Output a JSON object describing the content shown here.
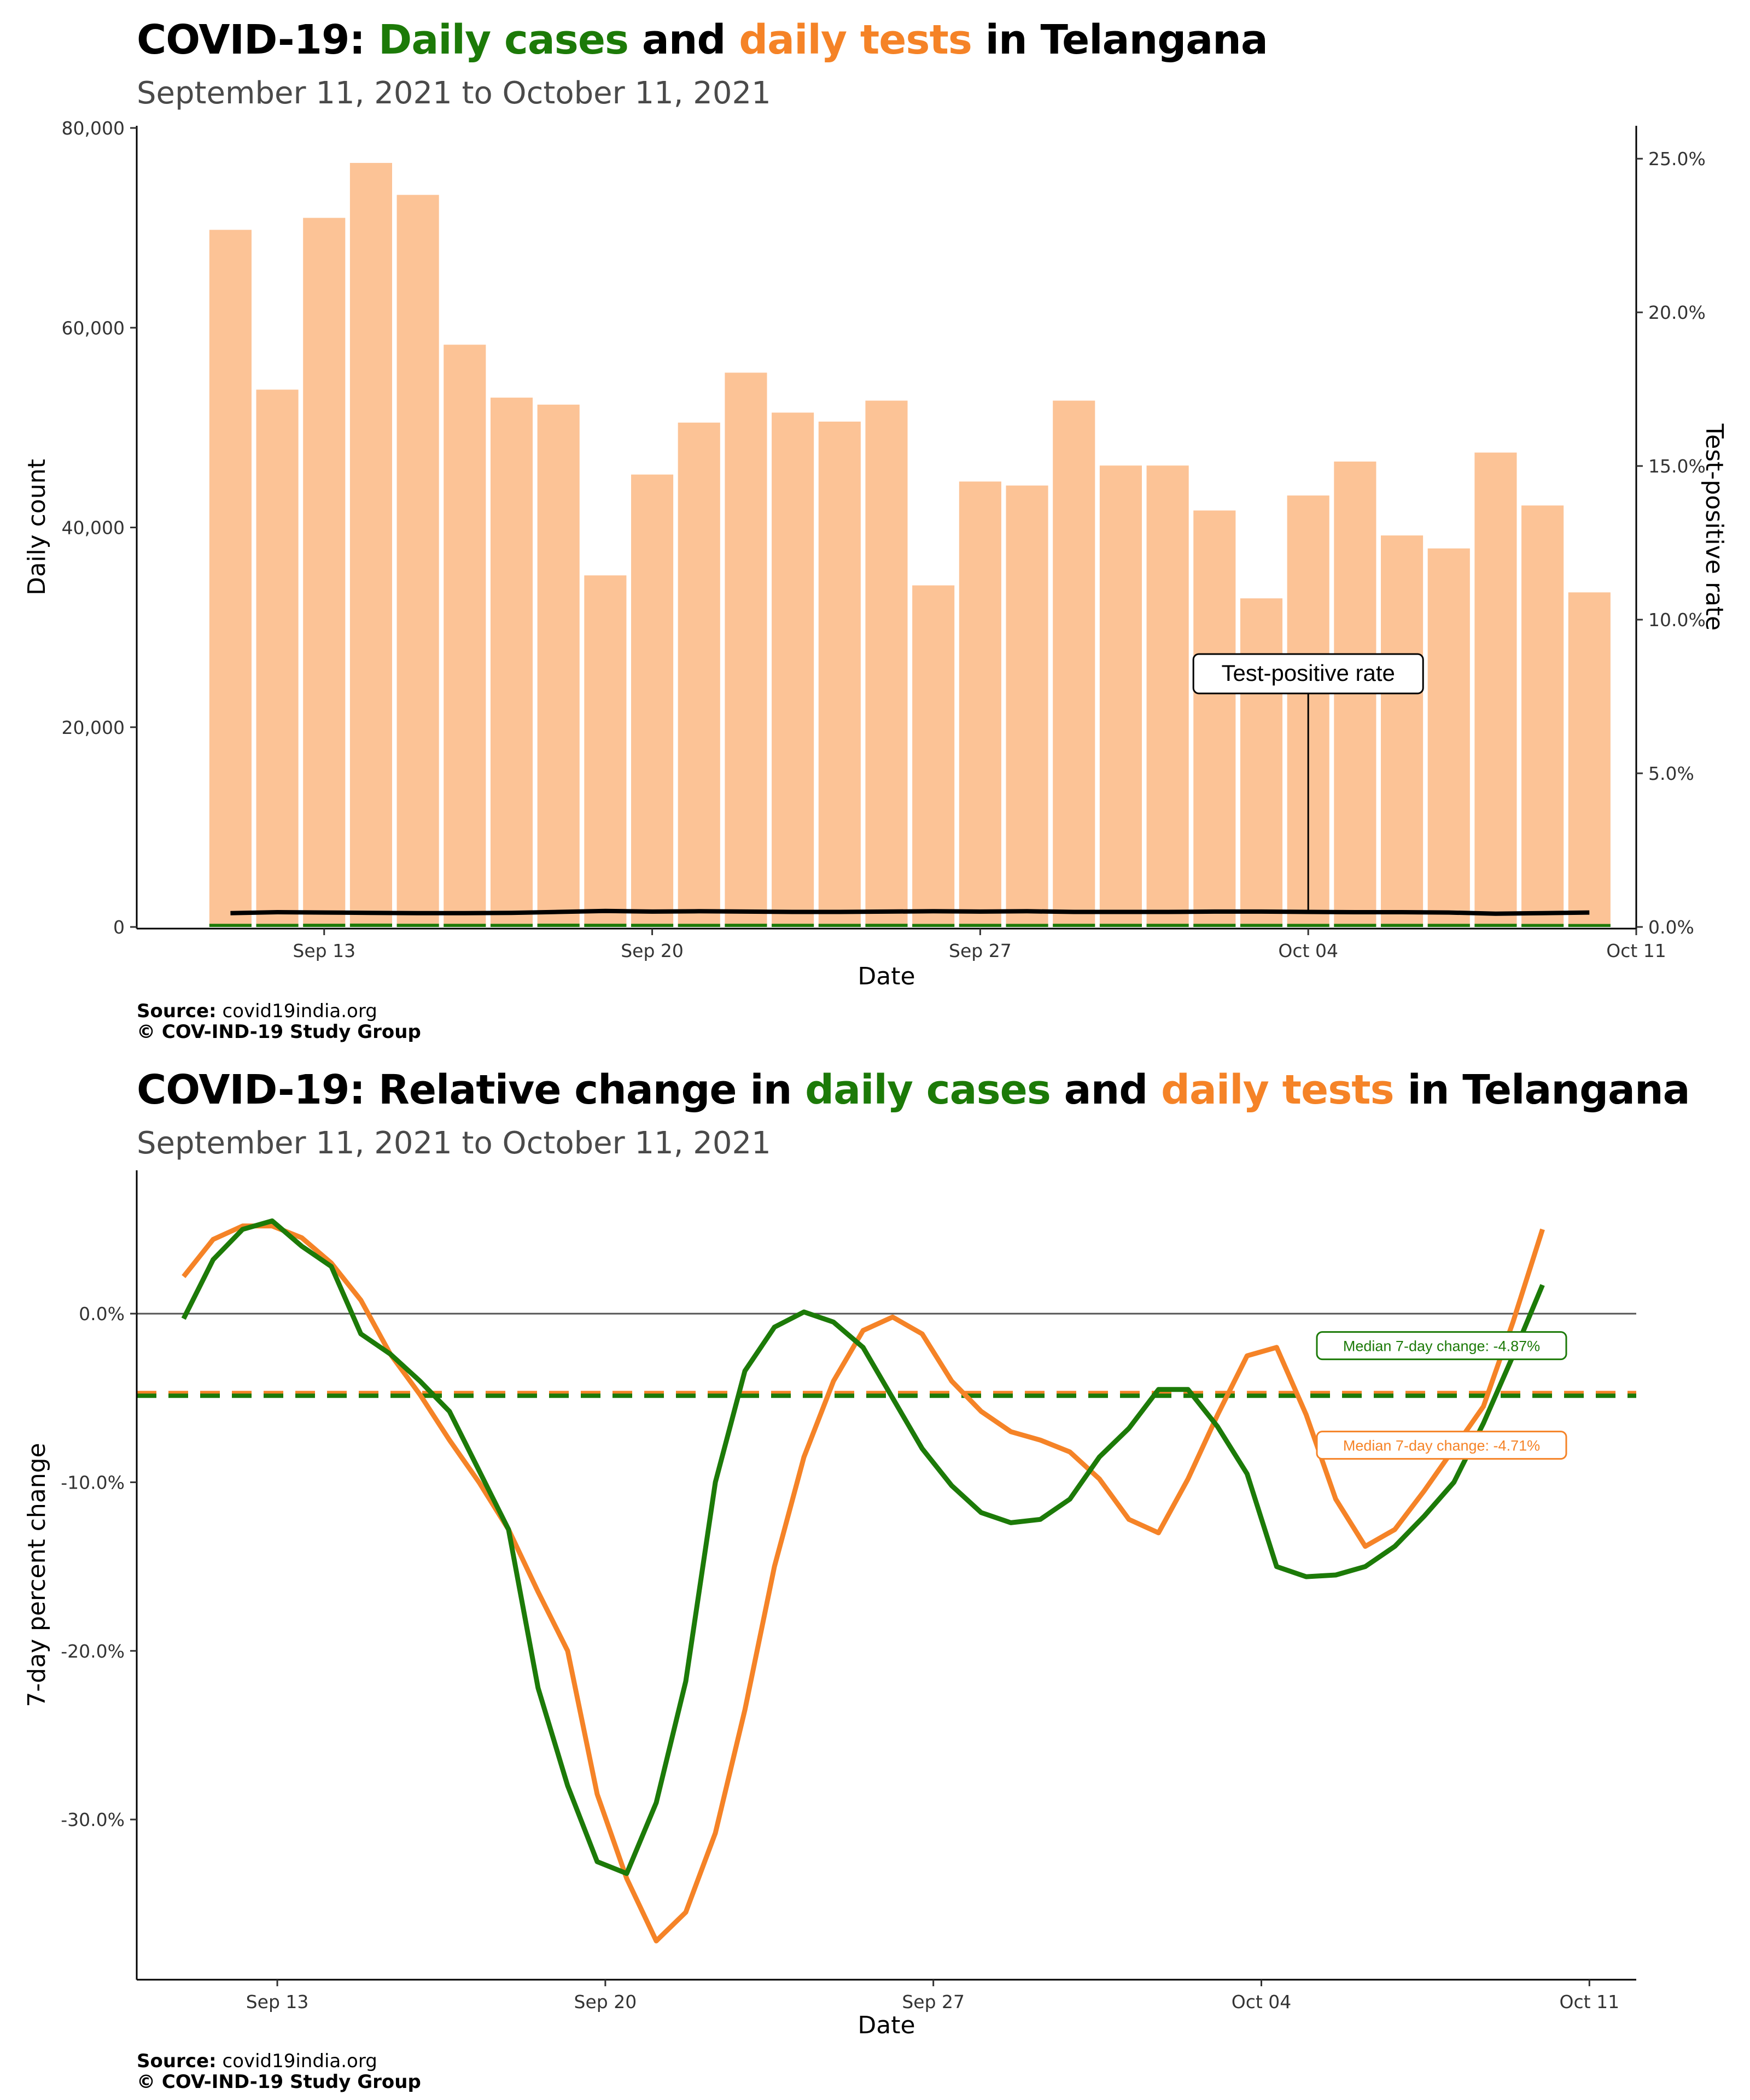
{
  "top": {
    "title_parts": [
      "COVID-19: ",
      "Daily cases",
      " and ",
      "daily tests",
      " in Telangana"
    ],
    "subtitle": "September 11, 2021 to October 11, 2021",
    "source_label": "Source:",
    "source_value": "covid19india.org",
    "copyright": "© COV-IND-19 Study Group"
  },
  "bottom": {
    "title_parts": [
      "COVID-19: Relative change in ",
      "daily cases",
      " and ",
      "daily tests",
      " in Telangana"
    ],
    "subtitle": "September 11, 2021 to October 11, 2021",
    "source_label": "Source:",
    "source_value": "covid19india.org",
    "copyright": "© COV-IND-19 Study Group"
  },
  "colors": {
    "cases": "#1c7a08",
    "tests": "#f58327",
    "tests_bar": "#fcc396",
    "tpr_line": "#000000",
    "zero_line": "#555555"
  },
  "chart_data": [
    {
      "type": "bar",
      "xlabel": "Date",
      "ylabel": "Daily count",
      "y2label": "Test-positive rate",
      "ylim": [
        0,
        80000
      ],
      "y2lim": [
        0,
        0.26
      ],
      "yticks": [
        0,
        20000,
        40000,
        60000,
        80000
      ],
      "ytick_labels": [
        "0",
        "20,000",
        "40,000",
        "60,000",
        "80,000"
      ],
      "y2ticks": [
        0,
        0.05,
        0.1,
        0.15,
        0.2,
        0.25
      ],
      "y2tick_labels": [
        "0.0%",
        "5.0%",
        "10.0%",
        "15.0%",
        "20.0%",
        "25.0%"
      ],
      "xticks": [
        "Sep 13",
        "Sep 20",
        "Sep 27",
        "Oct 04",
        "Oct 11"
      ],
      "xtick_dates": [
        "2021-09-13",
        "2021-09-20",
        "2021-09-27",
        "2021-10-04",
        "2021-10-11"
      ],
      "xlim_dates": [
        "2021-09-09",
        "2021-10-11"
      ],
      "dates": [
        "2021-09-11",
        "2021-09-12",
        "2021-09-13",
        "2021-09-14",
        "2021-09-15",
        "2021-09-16",
        "2021-09-17",
        "2021-09-18",
        "2021-09-19",
        "2021-09-20",
        "2021-09-21",
        "2021-09-22",
        "2021-09-23",
        "2021-09-24",
        "2021-09-25",
        "2021-09-26",
        "2021-09-27",
        "2021-09-28",
        "2021-09-29",
        "2021-09-30",
        "2021-10-01",
        "2021-10-02",
        "2021-10-03",
        "2021-10-04",
        "2021-10-05",
        "2021-10-06",
        "2021-10-07",
        "2021-10-08",
        "2021-10-09",
        "2021-10-10"
      ],
      "series": [
        {
          "name": "daily tests",
          "kind": "bar",
          "values": [
            69800,
            53800,
            71000,
            76500,
            73300,
            58300,
            53000,
            52300,
            35200,
            45300,
            50500,
            55500,
            51500,
            50600,
            52700,
            34200,
            44600,
            44200,
            52700,
            46200,
            46200,
            41700,
            32900,
            43200,
            46600,
            39200,
            37900,
            47500,
            42200,
            33500
          ]
        },
        {
          "name": "daily cases",
          "kind": "bar",
          "values": [
            315,
            312,
            322,
            336,
            320,
            315,
            313,
            330,
            322,
            318,
            315,
            322,
            319,
            313,
            318,
            304,
            314,
            310,
            319,
            316,
            317,
            314,
            313,
            311,
            312,
            313,
            314,
            316,
            304,
            298
          ]
        },
        {
          "name": "Test-positive rate",
          "kind": "line",
          "axis": "right",
          "values": [
            0.0045,
            0.0048,
            0.0047,
            0.0046,
            0.0045,
            0.0045,
            0.0046,
            0.0049,
            0.0052,
            0.005,
            0.0051,
            0.005,
            0.0049,
            0.0049,
            0.005,
            0.0051,
            0.005,
            0.0051,
            0.0049,
            0.0049,
            0.0049,
            0.005,
            0.005,
            0.0049,
            0.0048,
            0.0048,
            0.0047,
            0.0043,
            0.0045,
            0.0047
          ]
        }
      ],
      "annotations": [
        {
          "text": "Test-positive rate",
          "date": "2021-10-04"
        }
      ]
    },
    {
      "type": "line",
      "xlabel": "Date",
      "ylabel": "7-day percent change",
      "ylim": [
        -0.395,
        0.085
      ],
      "yticks": [
        0.0,
        -0.1,
        -0.2,
        -0.3
      ],
      "ytick_labels": [
        "0.0%",
        "-10.0%",
        "-20.0%",
        "-30.0%"
      ],
      "xticks": [
        "Sep 13",
        "Sep 20",
        "Sep 27",
        "Oct 04",
        "Oct 11"
      ],
      "xtick_dates": [
        "2021-09-13",
        "2021-09-20",
        "2021-09-27",
        "2021-10-04",
        "2021-10-11"
      ],
      "xlim_dates": [
        "2021-09-10",
        "2021-10-12"
      ],
      "series": [
        {
          "name": "daily tests",
          "color": "#f58327",
          "points": [
            [
              "2021-09-11.0",
              0.022
            ],
            [
              "2021-09-11.5",
              0.044
            ],
            [
              "2021-09-12.0",
              0.052
            ],
            [
              "2021-09-12.5",
              0.052
            ],
            [
              "2021-09-13.0",
              0.045
            ],
            [
              "2021-09-13.5",
              0.03
            ],
            [
              "2021-09-14.0",
              0.008
            ],
            [
              "2021-09-14.5",
              -0.024
            ],
            [
              "2021-09-15.0",
              -0.048
            ],
            [
              "2021-09-15.5",
              -0.075
            ],
            [
              "2021-09-16.0",
              -0.1
            ],
            [
              "2021-09-16.5",
              -0.128
            ],
            [
              "2021-09-17.0",
              -0.165
            ],
            [
              "2021-09-17.5",
              -0.2
            ],
            [
              "2021-09-18.0",
              -0.285
            ],
            [
              "2021-09-18.5",
              -0.335
            ],
            [
              "2021-09-19.0",
              -0.372
            ],
            [
              "2021-09-19.5",
              -0.355
            ],
            [
              "2021-09-20.0",
              -0.308
            ],
            [
              "2021-09-20.5",
              -0.235
            ],
            [
              "2021-09-21.0",
              -0.15
            ],
            [
              "2021-09-21.5",
              -0.085
            ],
            [
              "2021-09-22.0",
              -0.04
            ],
            [
              "2021-09-22.5",
              -0.01
            ],
            [
              "2021-09-23.0",
              -0.002
            ],
            [
              "2021-09-23.5",
              -0.012
            ],
            [
              "2021-09-24.0",
              -0.04
            ],
            [
              "2021-09-24.5",
              -0.058
            ],
            [
              "2021-09-25.0",
              -0.07
            ],
            [
              "2021-09-25.5",
              -0.075
            ],
            [
              "2021-09-26.0",
              -0.082
            ],
            [
              "2021-09-26.5",
              -0.098
            ],
            [
              "2021-09-27.0",
              -0.122
            ],
            [
              "2021-09-27.5",
              -0.13
            ],
            [
              "2021-09-28.0",
              -0.098
            ],
            [
              "2021-09-28.5",
              -0.06
            ],
            [
              "2021-09-29.0",
              -0.025
            ],
            [
              "2021-09-29.5",
              -0.02
            ],
            [
              "2021-09-30.0",
              -0.06
            ],
            [
              "2021-09-30.5",
              -0.11
            ],
            [
              "2021-10-01.0",
              -0.138
            ],
            [
              "2021-10-01.5",
              -0.128
            ],
            [
              "2021-10-02.0",
              -0.105
            ],
            [
              "2021-10-02.5",
              -0.08
            ],
            [
              "2021-10-03.0",
              -0.055
            ],
            [
              "2021-10-03.5",
              -0.005
            ],
            [
              "2021-10-04.0",
              0.05
            ]
          ]
        },
        {
          "name": "daily cases",
          "color": "#1c7a08",
          "points": [
            [
              "2021-09-11.0",
              -0.003
            ],
            [
              "2021-09-11.5",
              0.032
            ],
            [
              "2021-09-12.0",
              0.05
            ],
            [
              "2021-09-12.5",
              0.055
            ],
            [
              "2021-09-13.0",
              0.04
            ],
            [
              "2021-09-13.5",
              0.028
            ],
            [
              "2021-09-14.0",
              -0.012
            ],
            [
              "2021-09-14.5",
              -0.024
            ],
            [
              "2021-09-15.0",
              -0.04
            ],
            [
              "2021-09-15.5",
              -0.058
            ],
            [
              "2021-09-16.0",
              -0.093
            ],
            [
              "2021-09-16.5",
              -0.128
            ],
            [
              "2021-09-17.0",
              -0.222
            ],
            [
              "2021-09-17.5",
              -0.28
            ],
            [
              "2021-09-18.0",
              -0.325
            ],
            [
              "2021-09-18.5",
              -0.332
            ],
            [
              "2021-09-19.0",
              -0.29
            ],
            [
              "2021-09-19.5",
              -0.218
            ],
            [
              "2021-09-20.0",
              -0.1
            ],
            [
              "2021-09-20.5",
              -0.034
            ],
            [
              "2021-09-21.0",
              -0.008
            ],
            [
              "2021-09-21.5",
              0.001
            ],
            [
              "2021-09-22.0",
              -0.005
            ],
            [
              "2021-09-22.5",
              -0.02
            ],
            [
              "2021-09-23.0",
              -0.05
            ],
            [
              "2021-09-23.5",
              -0.08
            ],
            [
              "2021-09-24.0",
              -0.102
            ],
            [
              "2021-09-24.5",
              -0.118
            ],
            [
              "2021-09-25.0",
              -0.124
            ],
            [
              "2021-09-25.5",
              -0.122
            ],
            [
              "2021-09-26.0",
              -0.11
            ],
            [
              "2021-09-26.5",
              -0.085
            ],
            [
              "2021-09-27.0",
              -0.068
            ],
            [
              "2021-09-27.5",
              -0.045
            ],
            [
              "2021-09-28.0",
              -0.045
            ],
            [
              "2021-09-28.5",
              -0.067
            ],
            [
              "2021-09-29.0",
              -0.095
            ],
            [
              "2021-09-29.5",
              -0.15
            ],
            [
              "2021-09-30.0",
              -0.156
            ],
            [
              "2021-09-30.5",
              -0.155
            ],
            [
              "2021-10-01.0",
              -0.15
            ],
            [
              "2021-10-01.5",
              -0.138
            ],
            [
              "2021-10-02.0",
              -0.12
            ],
            [
              "2021-10-02.5",
              -0.1
            ],
            [
              "2021-10-03.0",
              -0.065
            ],
            [
              "2021-10-03.5",
              -0.025
            ],
            [
              "2021-10-04.0",
              0.017
            ]
          ]
        }
      ],
      "medians": [
        {
          "series": "daily tests",
          "value": -0.0471,
          "label": "Median 7-day change: -4.71%"
        },
        {
          "series": "daily cases",
          "value": -0.0487,
          "label": "Median 7-day change: -4.87%"
        }
      ]
    }
  ]
}
